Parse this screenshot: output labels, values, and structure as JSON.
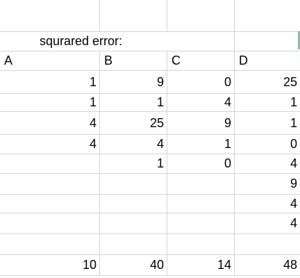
{
  "sheet": {
    "title": "squrared error:",
    "headers": [
      "A",
      "B",
      "C",
      "D"
    ],
    "rows": [
      [
        "1",
        "9",
        "0",
        "25"
      ],
      [
        "1",
        "1",
        "4",
        "1"
      ],
      [
        "4",
        "25",
        "9",
        "1"
      ],
      [
        "4",
        "4",
        "1",
        "0"
      ],
      [
        "",
        "1",
        "0",
        "4"
      ],
      [
        "",
        "",
        "",
        "9"
      ],
      [
        "",
        "",
        "",
        "4"
      ],
      [
        "",
        "",
        "",
        "4"
      ],
      [
        "",
        "",
        "",
        ""
      ],
      [
        "10",
        "40",
        "14",
        "48"
      ]
    ]
  }
}
